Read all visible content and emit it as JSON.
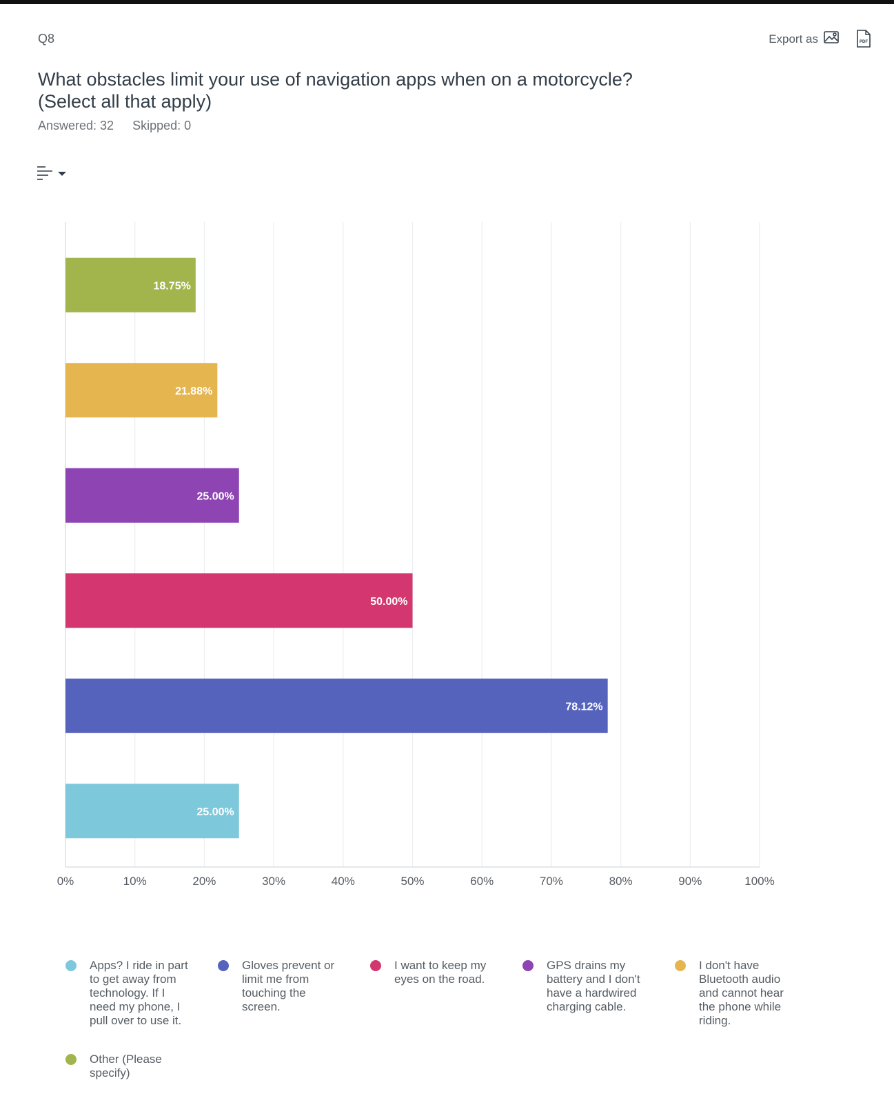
{
  "header": {
    "question_number": "Q8",
    "export_label": "Export as",
    "title": "What obstacles limit your use of navigation apps when on a motorcycle? (Select all that apply)",
    "answered": "Answered: 32",
    "skipped": "Skipped: 0"
  },
  "icons": {
    "export_image": "image-icon",
    "export_pdf": "pdf-icon",
    "sort": "sort-icon"
  },
  "chart_data": {
    "type": "bar",
    "orientation": "horizontal",
    "categories": [
      "Other (Please specify)",
      "I don't have Bluetooth audio and cannot hear the phone while riding.",
      "GPS drains my battery and I don't have a hardwired charging cable.",
      "I want to keep my eyes on the road.",
      "Gloves prevent or limit me from touching the screen.",
      "Apps? I ride in part to get away from technology. If I need my phone, I pull over to use it."
    ],
    "values": [
      18.75,
      21.88,
      25.0,
      50.0,
      78.12,
      25.0
    ],
    "value_labels": [
      "18.75%",
      "21.88%",
      "25.00%",
      "50.00%",
      "78.12%",
      "25.00%"
    ],
    "colors": [
      "#a1b54c",
      "#e5b54f",
      "#8e44b2",
      "#d4376f",
      "#5563bd",
      "#7ec8dc"
    ],
    "xlim": [
      0,
      100
    ],
    "x_ticks": [
      "0%",
      "10%",
      "20%",
      "30%",
      "40%",
      "50%",
      "60%",
      "70%",
      "80%",
      "90%",
      "100%"
    ],
    "grid": true,
    "legend_position": "bottom",
    "legend": [
      {
        "label": "Apps? I ride in part to get away from technology. If I need my phone, I pull over to use it.",
        "color": "#7ec8dc"
      },
      {
        "label": "Gloves prevent or limit me from touching the screen.",
        "color": "#5563bd"
      },
      {
        "label": "I want to keep my eyes on the road.",
        "color": "#d4376f"
      },
      {
        "label": "GPS drains my battery and I don't have a hardwired charging cable.",
        "color": "#8e44b2"
      },
      {
        "label": "I don't have Bluetooth audio and cannot hear the phone while riding.",
        "color": "#e5b54f"
      },
      {
        "label": "Other (Please specify)",
        "color": "#a1b54c"
      }
    ]
  }
}
